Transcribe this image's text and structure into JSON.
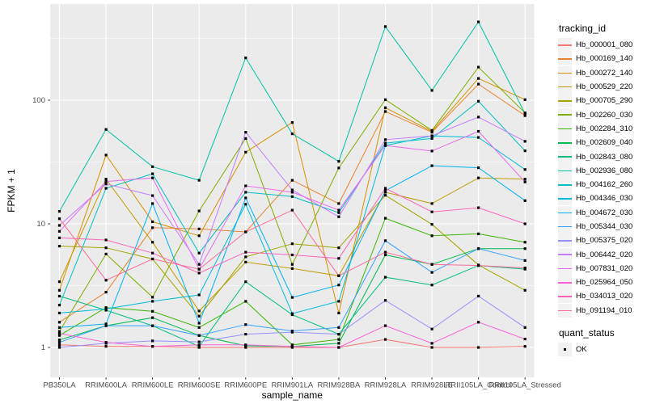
{
  "figure": {
    "background": "#FFFFFF",
    "panel_background": "#EBEBEB",
    "gridline_color": "#FFFFFF",
    "tick_mark_color": "#333333",
    "axis_text_color": "#4D4D4D",
    "axis_title_color": "#000000",
    "legend_key_background": "#F2F2F2",
    "point_color": "#000000"
  },
  "chart_data": {
    "type": "line",
    "title": "",
    "xlabel": "sample_name",
    "ylabel": "FPKM + 1",
    "y_scale": "log10",
    "y_ticks": [
      1,
      10,
      100
    ],
    "y_tick_labels": [
      "1",
      "10",
      "100"
    ],
    "y_minor_ticks": [
      3.162,
      31.623,
      316.228
    ],
    "ylim": [
      0.573,
      599
    ],
    "grid": true,
    "legend_position": "right",
    "legend_title": "tracking_id",
    "point_shape": "square",
    "categories": [
      "PB350LA",
      "RRIM600LA",
      "RRIM600LE",
      "RRIM600SE",
      "RRIM600PE",
      "RRIM901LA",
      "RRIM928BA",
      "RRIM928LA",
      "RRIM928LE",
      "RRII105LA_Control",
      "RRII105LA_Stressed"
    ],
    "series": [
      {
        "name": "Hb_000001_080",
        "color": "#F8766D",
        "values": [
          1.05,
          1.02,
          1.02,
          1.0,
          1.0,
          1.0,
          1.0,
          1.16,
          1.0,
          1.0,
          1.02
        ]
      },
      {
        "name": "Hb_000169_140",
        "color": "#EA8331",
        "values": [
          1.6,
          2.8,
          9.3,
          9.1,
          8.6,
          22.5,
          14.6,
          81,
          55,
          135,
          75
        ]
      },
      {
        "name": "Hb_000272_140",
        "color": "#D89000",
        "values": [
          2.9,
          36,
          10.4,
          8.0,
          38,
          66,
          1.9,
          87,
          56,
          150,
          101
        ]
      },
      {
        "name": "Hb_000529_220",
        "color": "#C09B00",
        "values": [
          3.4,
          23,
          7.1,
          1.97,
          4.9,
          4.35,
          3.8,
          18,
          14.6,
          23.5,
          23
        ]
      },
      {
        "name": "Hb_000705_290",
        "color": "#A3A500",
        "values": [
          6.6,
          6.4,
          5.2,
          1.79,
          5.4,
          6.9,
          6.4,
          17,
          9.9,
          4.65,
          2.9
        ]
      },
      {
        "name": "Hb_002260_030",
        "color": "#7CAE00",
        "values": [
          1.35,
          5.7,
          2.55,
          12.7,
          49,
          4.7,
          28.3,
          101,
          57,
          185,
          79
        ]
      },
      {
        "name": "Hb_002284_310",
        "color": "#39B600",
        "values": [
          1.25,
          2.1,
          1.96,
          1.45,
          2.36,
          1.05,
          1.16,
          11.1,
          8.0,
          8.3,
          7.1
        ]
      },
      {
        "name": "Hb_002609_040",
        "color": "#00BB4E",
        "values": [
          1.15,
          1.5,
          1.74,
          1.25,
          1.03,
          1.02,
          1.08,
          5.6,
          4.7,
          6.3,
          6.3
        ]
      },
      {
        "name": "Hb_002843_080",
        "color": "#00BF7D",
        "values": [
          2.6,
          2.0,
          1.5,
          1.02,
          3.4,
          1.84,
          1.28,
          3.7,
          3.2,
          4.6,
          4.3
        ]
      },
      {
        "name": "Hb_002936_080",
        "color": "#00C1A3",
        "values": [
          12.6,
          58,
          29,
          22.5,
          220,
          53.5,
          32,
          394,
          120,
          430,
          78
        ]
      },
      {
        "name": "Hb_004162_260",
        "color": "#00BFC4",
        "values": [
          2.2,
          19.4,
          25.4,
          5.8,
          18,
          16.6,
          12.3,
          45,
          49,
          98,
          39
        ]
      },
      {
        "name": "Hb_004346_030",
        "color": "#00BBDA",
        "values": [
          1.9,
          2.05,
          2.36,
          2.66,
          14.4,
          1.88,
          2.36,
          43,
          51.5,
          50,
          27.5
        ]
      },
      {
        "name": "Hb_004672_030",
        "color": "#00B0F6",
        "values": [
          1.45,
          1.55,
          14.6,
          1.57,
          16.2,
          2.54,
          3.2,
          18.5,
          29.5,
          28.4,
          15.4
        ]
      },
      {
        "name": "Hb_005344_030",
        "color": "#35A2FF",
        "values": [
          1.1,
          1.5,
          1.5,
          1.25,
          1.53,
          1.36,
          1.45,
          7.3,
          4.05,
          6.3,
          5.05
        ]
      },
      {
        "name": "Hb_005375_020",
        "color": "#9590FF",
        "values": [
          1.0,
          1.08,
          1.13,
          1.11,
          1.28,
          1.33,
          1.28,
          2.4,
          1.41,
          2.6,
          1.45
        ]
      },
      {
        "name": "Hb_006442_020",
        "color": "#C77CFF",
        "values": [
          9.7,
          21,
          16.9,
          4.7,
          55,
          18.8,
          11.4,
          48,
          51.5,
          73,
          46.5
        ]
      },
      {
        "name": "Hb_007831_020",
        "color": "#E76BF3",
        "values": [
          8.7,
          22,
          23.5,
          4.3,
          20.3,
          18,
          12.9,
          43,
          38.8,
          56,
          21.8
        ]
      },
      {
        "name": "Hb_025964_050",
        "color": "#FA62DB",
        "values": [
          1.3,
          1.1,
          1.02,
          1.05,
          1.05,
          1.02,
          1.0,
          1.5,
          1.08,
          1.6,
          1.17
        ]
      },
      {
        "name": "Hb_034013_020",
        "color": "#FF62BC",
        "values": [
          7.7,
          7.4,
          5.8,
          4.0,
          5.9,
          5.6,
          5.25,
          19.4,
          12.5,
          13.5,
          10.0
        ]
      },
      {
        "name": "Hb_091194_010",
        "color": "#FF6A98",
        "values": [
          11.0,
          3.5,
          5.2,
          4.3,
          8.6,
          12.9,
          3.8,
          5.9,
          4.7,
          4.6,
          4.4
        ]
      }
    ],
    "quant_legend": {
      "title": "quant_status",
      "items": [
        {
          "label": "OK"
        }
      ]
    }
  }
}
